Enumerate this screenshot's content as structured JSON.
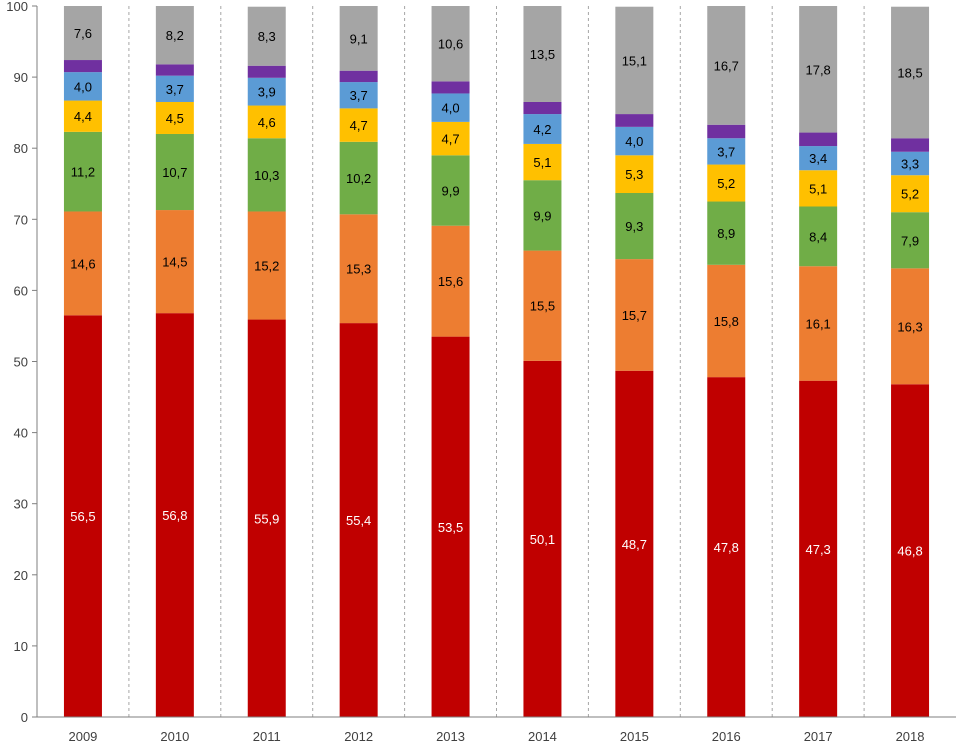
{
  "chart_data": {
    "type": "bar",
    "stacked": true,
    "title": "",
    "xlabel": "",
    "ylabel": "",
    "ylim": [
      0,
      100
    ],
    "yticks": [
      "0",
      "10",
      "20",
      "30",
      "40",
      "50",
      "60",
      "70",
      "80",
      "90",
      "100"
    ],
    "categories": [
      "2009",
      "2010",
      "2011",
      "2012",
      "2013",
      "2014",
      "2015",
      "2016",
      "2017",
      "2018"
    ],
    "grid": "vertical dashed separators between categories",
    "series": [
      {
        "color": "#c00000",
        "values": [
          56.5,
          56.8,
          55.9,
          55.4,
          53.5,
          50.1,
          48.7,
          47.8,
          47.3,
          46.8
        ],
        "labels": [
          "56,5",
          "56,8",
          "55,9",
          "55,4",
          "53,5",
          "50,1",
          "48,7",
          "47,8",
          "47,3",
          "46,8"
        ]
      },
      {
        "color": "#ed7d31",
        "values": [
          14.6,
          14.5,
          15.2,
          15.3,
          15.6,
          15.5,
          15.7,
          15.8,
          16.1,
          16.3
        ],
        "labels": [
          "14,6",
          "14,5",
          "15,2",
          "15,3",
          "15,6",
          "15,5",
          "15,7",
          "15,8",
          "16,1",
          "16,3"
        ]
      },
      {
        "color": "#70ad47",
        "values": [
          11.2,
          10.7,
          10.3,
          10.2,
          9.9,
          9.9,
          9.3,
          8.9,
          8.4,
          7.9
        ],
        "labels": [
          "11,2",
          "10,7",
          "10,3",
          "10,2",
          "9,9",
          "9,9",
          "9,3",
          "8,9",
          "8,4",
          "7,9"
        ]
      },
      {
        "color": "#ffc000",
        "values": [
          4.4,
          4.5,
          4.6,
          4.7,
          4.7,
          5.1,
          5.3,
          5.2,
          5.1,
          5.2
        ],
        "labels": [
          "4,4",
          "4,5",
          "4,6",
          "4,7",
          "4,7",
          "5,1",
          "5,3",
          "5,2",
          "5,1",
          "5,2"
        ]
      },
      {
        "color": "#5b9bd5",
        "values": [
          4.0,
          3.7,
          3.9,
          3.7,
          4.0,
          4.2,
          4.0,
          3.7,
          3.4,
          3.3
        ],
        "labels": [
          "4,0",
          "3,7",
          "3,9",
          "3,7",
          "4,0",
          "4,2",
          "4,0",
          "3,7",
          "3,4",
          "3,3"
        ]
      },
      {
        "color": "#7030a0",
        "values": [
          1.7,
          1.6,
          1.7,
          1.6,
          1.7,
          1.7,
          1.8,
          1.9,
          1.9,
          1.9
        ],
        "labels": [
          "",
          "",
          "",
          "",
          "",
          "",
          "",
          "",
          "",
          ""
        ]
      },
      {
        "color": "#a5a5a5",
        "values": [
          7.6,
          8.2,
          8.3,
          9.1,
          10.6,
          13.5,
          15.1,
          16.7,
          17.8,
          18.5
        ],
        "labels": [
          "7,6",
          "8,2",
          "8,3",
          "9,1",
          "10,6",
          "13,5",
          "15,1",
          "16,7",
          "17,8",
          "18,5"
        ]
      }
    ]
  }
}
